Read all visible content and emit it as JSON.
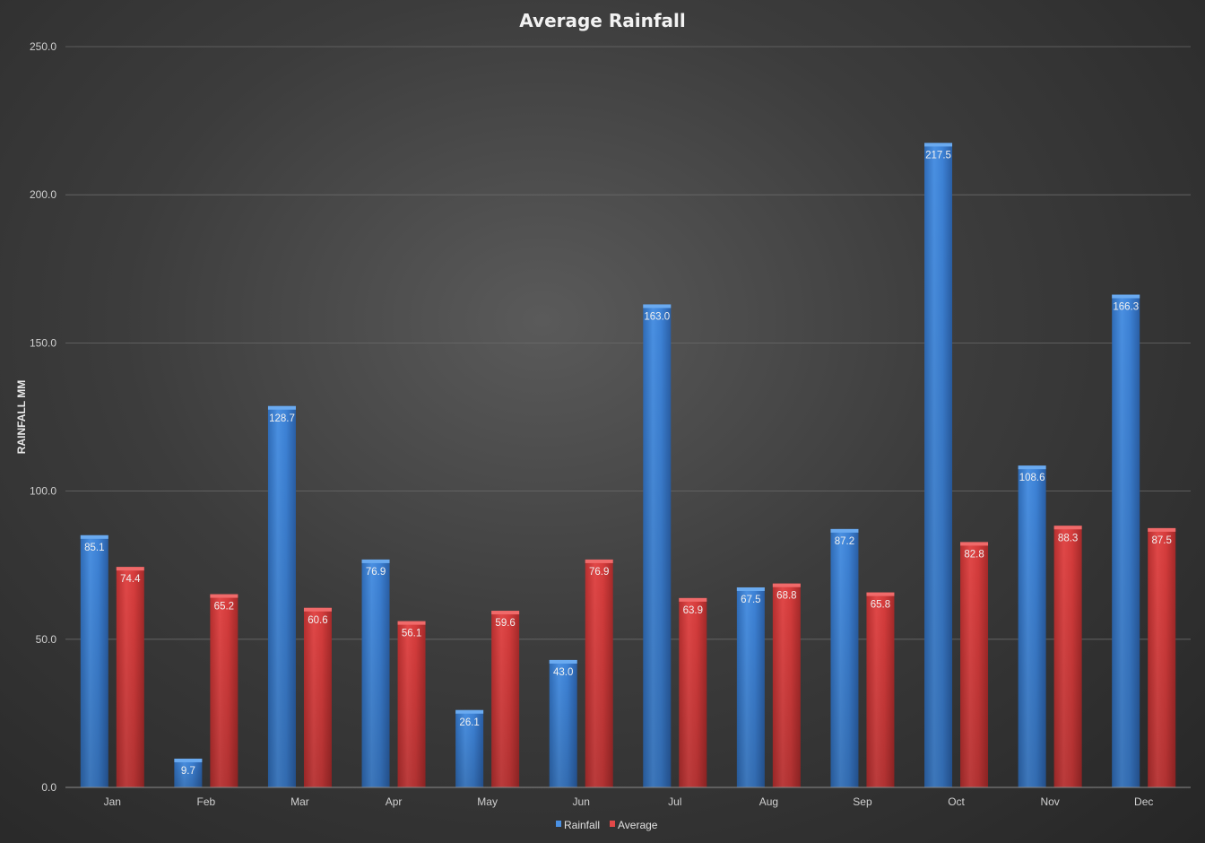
{
  "chart_data": {
    "type": "bar",
    "title": "Average Rainfall",
    "ylabel": "RAINFALL MM",
    "xlabel": "",
    "ylim": [
      0,
      250
    ],
    "yticks": [
      "0.0",
      "50.0",
      "100.0",
      "150.0",
      "200.0",
      "250.0"
    ],
    "ytick_values": [
      0,
      50,
      100,
      150,
      200,
      250
    ],
    "categories": [
      "Jan",
      "Feb",
      "Mar",
      "Apr",
      "May",
      "Jun",
      "Jul",
      "Aug",
      "Sep",
      "Oct",
      "Nov",
      "Dec"
    ],
    "series": [
      {
        "name": "Rainfall",
        "color": "#3d82d6",
        "values": [
          85.1,
          9.7,
          128.7,
          76.9,
          26.1,
          43.0,
          163.0,
          67.5,
          87.2,
          217.5,
          108.6,
          166.3
        ],
        "labels": [
          "85.1",
          "9.7",
          "128.7",
          "76.9",
          "26.1",
          "43.0",
          "163.0",
          "67.5",
          "87.2",
          "217.5",
          "108.6",
          "166.3"
        ]
      },
      {
        "name": "Average",
        "color": "#d63c3c",
        "values": [
          74.4,
          65.2,
          60.6,
          56.1,
          59.6,
          76.9,
          63.9,
          68.8,
          65.8,
          82.8,
          88.3,
          87.5
        ],
        "labels": [
          "74.4",
          "65.2",
          "60.6",
          "56.1",
          "59.6",
          "76.9",
          "63.9",
          "68.8",
          "65.8",
          "82.8",
          "88.3",
          "87.5"
        ]
      }
    ],
    "grid": true,
    "legend": "bottom"
  }
}
